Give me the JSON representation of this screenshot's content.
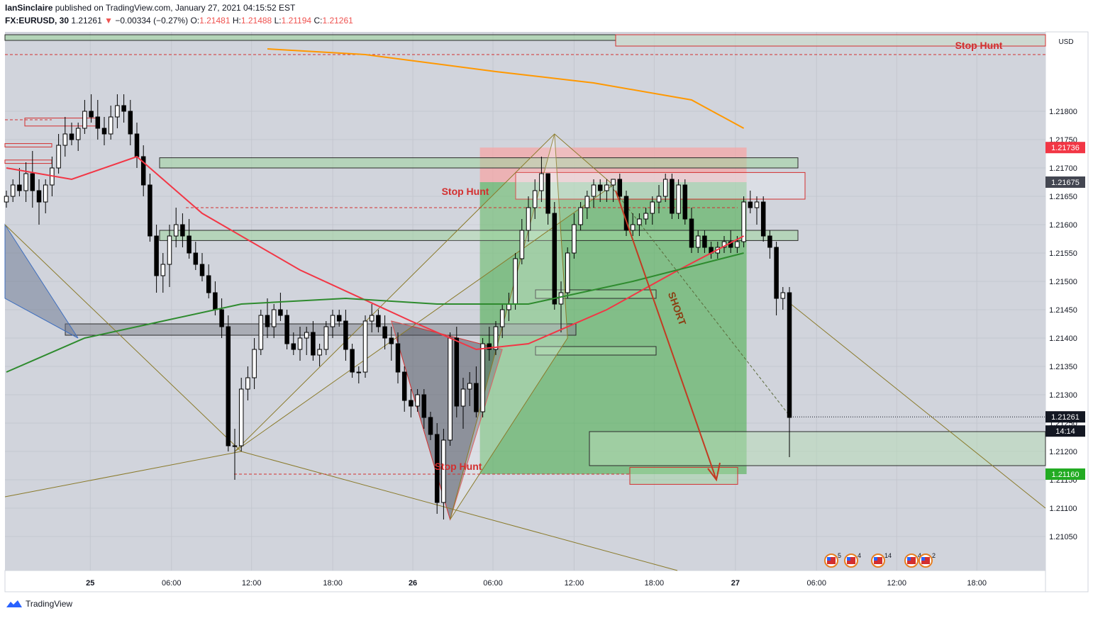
{
  "header": {
    "author": "IanSinclaire",
    "published_text": "published on TradingView.com, January 27, 2021 04:15:52 EST",
    "symbol": "FX:EURUSD, 30",
    "last": "1.21261",
    "arrow": "▼",
    "change": "−0.00334 (−0.27%)",
    "o_label": "O:",
    "o_value": "1.21481",
    "h_label": "H:",
    "h_value": "1.21488",
    "l_label": "L:",
    "l_value": "1.21194",
    "c_label": "C:",
    "c_value": "1.21261"
  },
  "footer": {
    "brand": "TradingView"
  },
  "colors": {
    "up": "#ffffff",
    "down": "#000000",
    "bg": "#d1d4dc",
    "ma_fast": "#f23645",
    "ma_slow": "#2e8b2e",
    "ma_long": "#ff9800",
    "target_zone": "#4caf50",
    "stop_zone": "#f4a7a7",
    "annotation_red": "#d32f2f",
    "price_tag_red": "#f23645",
    "price_tag_green": "#22ab22"
  },
  "chart_data": {
    "type": "candlestick",
    "symbol": "EURUSD",
    "timeframe": "30",
    "currency": "USD",
    "ylim": [
      1.2099,
      1.2194
    ],
    "y_ticks": [
      "1.21050",
      "1.21100",
      "1.21150",
      "1.21200",
      "1.21250",
      "1.21300",
      "1.21350",
      "1.21400",
      "1.21450",
      "1.21500",
      "1.21550",
      "1.21600",
      "1.21650",
      "1.21700",
      "1.21750",
      "1.21800"
    ],
    "x_ticks": [
      "25",
      "06:00",
      "12:00",
      "18:00",
      "26",
      "06:00",
      "12:00",
      "18:00",
      "27",
      "06:00",
      "12:00",
      "18:00"
    ],
    "candles": [
      [
        1.2164,
        1.2166,
        1.2163,
        1.2165
      ],
      [
        1.2165,
        1.2168,
        1.2164,
        1.2167
      ],
      [
        1.2167,
        1.217,
        1.2165,
        1.2166
      ],
      [
        1.2166,
        1.2171,
        1.2164,
        1.2169
      ],
      [
        1.2169,
        1.2173,
        1.2163,
        1.2166
      ],
      [
        1.2166,
        1.2168,
        1.216,
        1.2164
      ],
      [
        1.2164,
        1.2168,
        1.2162,
        1.2167
      ],
      [
        1.2167,
        1.2172,
        1.2165,
        1.217
      ],
      [
        1.217,
        1.2176,
        1.2169,
        1.2174
      ],
      [
        1.2174,
        1.2179,
        1.2172,
        1.2176
      ],
      [
        1.2176,
        1.2178,
        1.2174,
        1.2175
      ],
      [
        1.2175,
        1.2178,
        1.2173,
        1.2177
      ],
      [
        1.2177,
        1.2182,
        1.2176,
        1.218
      ],
      [
        1.218,
        1.2183,
        1.2178,
        1.2179
      ],
      [
        1.2179,
        1.2182,
        1.2175,
        1.2177
      ],
      [
        1.2177,
        1.2179,
        1.2174,
        1.2176
      ],
      [
        1.2176,
        1.2181,
        1.2175,
        1.2179
      ],
      [
        1.2179,
        1.2183,
        1.2177,
        1.2181
      ],
      [
        1.2181,
        1.2183,
        1.2178,
        1.218
      ],
      [
        1.218,
        1.2182,
        1.2174,
        1.2176
      ],
      [
        1.2176,
        1.2178,
        1.217,
        1.2172
      ],
      [
        1.2172,
        1.2174,
        1.2165,
        1.2167
      ],
      [
        1.2167,
        1.2169,
        1.2157,
        1.2158
      ],
      [
        1.2158,
        1.216,
        1.2148,
        1.2151
      ],
      [
        1.2151,
        1.2155,
        1.2148,
        1.2153
      ],
      [
        1.2153,
        1.216,
        1.2149,
        1.2158
      ],
      [
        1.2158,
        1.2163,
        1.2156,
        1.216
      ],
      [
        1.216,
        1.2162,
        1.2156,
        1.2158
      ],
      [
        1.2158,
        1.2161,
        1.2154,
        1.2155
      ],
      [
        1.2155,
        1.2157,
        1.2152,
        1.2153
      ],
      [
        1.2153,
        1.2155,
        1.215,
        1.2151
      ],
      [
        1.2151,
        1.2153,
        1.2147,
        1.2148
      ],
      [
        1.2148,
        1.215,
        1.2144,
        1.2145
      ],
      [
        1.2145,
        1.2147,
        1.214,
        1.2142
      ],
      [
        1.2142,
        1.2144,
        1.212,
        1.2121
      ],
      [
        1.2121,
        1.2124,
        1.2115,
        1.2121
      ],
      [
        1.2121,
        1.2133,
        1.212,
        1.2131
      ],
      [
        1.2131,
        1.2135,
        1.2129,
        1.2133
      ],
      [
        1.2133,
        1.214,
        1.2131,
        1.2138
      ],
      [
        1.2138,
        1.2145,
        1.2137,
        1.2144
      ],
      [
        1.2144,
        1.2147,
        1.214,
        1.2142
      ],
      [
        1.2142,
        1.2146,
        1.214,
        1.2145
      ],
      [
        1.2145,
        1.2148,
        1.2143,
        1.2144
      ],
      [
        1.2144,
        1.2145,
        1.2138,
        1.2139
      ],
      [
        1.2139,
        1.2141,
        1.2137,
        1.2138
      ],
      [
        1.2138,
        1.2142,
        1.2136,
        1.214
      ],
      [
        1.214,
        1.2142,
        1.2137,
        1.2141
      ],
      [
        1.2141,
        1.2143,
        1.2136,
        1.2137
      ],
      [
        1.2137,
        1.2139,
        1.2135,
        1.2138
      ],
      [
        1.2138,
        1.2143,
        1.2137,
        1.2142
      ],
      [
        1.2142,
        1.2145,
        1.214,
        1.2144
      ],
      [
        1.2144,
        1.2145,
        1.2142,
        1.2143
      ],
      [
        1.2143,
        1.2145,
        1.2136,
        1.2138
      ],
      [
        1.2138,
        1.2139,
        1.2133,
        1.2134
      ],
      [
        1.2134,
        1.2135,
        1.2132,
        1.2134
      ],
      [
        1.2134,
        1.2144,
        1.2133,
        1.2143
      ],
      [
        1.2143,
        1.2146,
        1.2141,
        1.2144
      ],
      [
        1.2144,
        1.2145,
        1.2141,
        1.2142
      ],
      [
        1.2142,
        1.2144,
        1.2138,
        1.214
      ],
      [
        1.214,
        1.2142,
        1.2136,
        1.2139
      ],
      [
        1.2139,
        1.2141,
        1.2132,
        1.2134
      ],
      [
        1.2134,
        1.2135,
        1.2127,
        1.2129
      ],
      [
        1.2129,
        1.2131,
        1.2126,
        1.2128
      ],
      [
        1.2128,
        1.2131,
        1.2127,
        1.213
      ],
      [
        1.213,
        1.2131,
        1.2124,
        1.2126
      ],
      [
        1.2126,
        1.2127,
        1.2122,
        1.2123
      ],
      [
        1.2123,
        1.2125,
        1.2109,
        1.2111
      ],
      [
        1.2111,
        1.2124,
        1.2108,
        1.2122
      ],
      [
        1.2122,
        1.2141,
        1.2121,
        1.214
      ],
      [
        1.214,
        1.2142,
        1.2126,
        1.2128
      ],
      [
        1.2128,
        1.2133,
        1.2124,
        1.2131
      ],
      [
        1.2131,
        1.2134,
        1.2128,
        1.2132
      ],
      [
        1.2132,
        1.2135,
        1.2126,
        1.2127
      ],
      [
        1.2127,
        1.214,
        1.2126,
        1.2139
      ],
      [
        1.2139,
        1.2142,
        1.2136,
        1.2138
      ],
      [
        1.2138,
        1.2143,
        1.2137,
        1.2142
      ],
      [
        1.2142,
        1.2146,
        1.214,
        1.2145
      ],
      [
        1.2145,
        1.2148,
        1.2143,
        1.2146
      ],
      [
        1.2146,
        1.2155,
        1.2145,
        1.2154
      ],
      [
        1.2154,
        1.2161,
        1.2153,
        1.2159
      ],
      [
        1.2159,
        1.2165,
        1.2157,
        1.2163
      ],
      [
        1.2163,
        1.2168,
        1.2161,
        1.2166
      ],
      [
        1.2166,
        1.2172,
        1.2164,
        1.2169
      ],
      [
        1.2169,
        1.2169,
        1.216,
        1.2162
      ],
      [
        1.2162,
        1.2164,
        1.2145,
        1.2146
      ],
      [
        1.2146,
        1.215,
        1.2141,
        1.2148
      ],
      [
        1.2148,
        1.2156,
        1.2147,
        1.2155
      ],
      [
        1.2155,
        1.2162,
        1.2154,
        1.216
      ],
      [
        1.216,
        1.2164,
        1.2159,
        1.2163
      ],
      [
        1.2163,
        1.2166,
        1.2161,
        1.2165
      ],
      [
        1.2165,
        1.2168,
        1.2163,
        1.2167
      ],
      [
        1.2167,
        1.2168,
        1.2164,
        1.2166
      ],
      [
        1.2166,
        1.2168,
        1.2164,
        1.2167
      ],
      [
        1.2167,
        1.2168,
        1.2164,
        1.2168
      ],
      [
        1.2168,
        1.2169,
        1.2164,
        1.2165
      ],
      [
        1.2165,
        1.2166,
        1.2158,
        1.2159
      ],
      [
        1.2159,
        1.2162,
        1.2158,
        1.216
      ],
      [
        1.216,
        1.2162,
        1.2158,
        1.2161
      ],
      [
        1.2161,
        1.2163,
        1.216,
        1.2162
      ],
      [
        1.2162,
        1.2165,
        1.216,
        1.2164
      ],
      [
        1.2164,
        1.2167,
        1.2162,
        1.2165
      ],
      [
        1.2165,
        1.2169,
        1.2164,
        1.2168
      ],
      [
        1.2168,
        1.2169,
        1.2161,
        1.2162
      ],
      [
        1.2162,
        1.2168,
        1.2161,
        1.2167
      ],
      [
        1.2167,
        1.2168,
        1.216,
        1.2161
      ],
      [
        1.2161,
        1.2163,
        1.2155,
        1.2156
      ],
      [
        1.2156,
        1.2159,
        1.2155,
        1.2158
      ],
      [
        1.2158,
        1.2159,
        1.2155,
        1.2156
      ],
      [
        1.2156,
        1.2157,
        1.2154,
        1.2155
      ],
      [
        1.2155,
        1.2157,
        1.2154,
        1.2156
      ],
      [
        1.2156,
        1.2158,
        1.2155,
        1.2157
      ],
      [
        1.2157,
        1.2159,
        1.2155,
        1.2156
      ],
      [
        1.2156,
        1.2158,
        1.2155,
        1.2157
      ],
      [
        1.2157,
        1.2165,
        1.2156,
        1.2164
      ],
      [
        1.2164,
        1.2166,
        1.2162,
        1.2163
      ],
      [
        1.2163,
        1.2165,
        1.216,
        1.2164
      ],
      [
        1.2164,
        1.2165,
        1.2157,
        1.2158
      ],
      [
        1.2158,
        1.2159,
        1.2154,
        1.2156
      ],
      [
        1.2156,
        1.2157,
        1.2144,
        1.2147
      ],
      [
        1.2147,
        1.2149,
        1.2145,
        1.2148
      ],
      [
        1.2148,
        1.2149,
        1.2119,
        1.2126
      ]
    ],
    "series": [
      {
        "style": "line",
        "color": "#f23645",
        "values": [
          [
            0,
            1.217
          ],
          [
            10,
            1.2168
          ],
          [
            20,
            1.2172
          ],
          [
            30,
            1.2162
          ],
          [
            45,
            1.2152
          ],
          [
            62,
            1.2143
          ],
          [
            72,
            1.2138
          ],
          [
            80,
            1.2139
          ],
          [
            92,
            1.2145
          ],
          [
            103,
            1.2152
          ],
          [
            113,
            1.2158
          ]
        ]
      },
      {
        "style": "line",
        "color": "#2e8b2e",
        "values": [
          [
            0,
            1.2134
          ],
          [
            12,
            1.214
          ],
          [
            24,
            1.2143
          ],
          [
            36,
            1.2146
          ],
          [
            52,
            1.2147
          ],
          [
            66,
            1.2146
          ],
          [
            80,
            1.2146
          ],
          [
            96,
            1.215
          ],
          [
            113,
            1.2155
          ]
        ]
      },
      {
        "style": "line",
        "color": "#ff9800",
        "values": [
          [
            40,
            1.2191
          ],
          [
            55,
            1.219
          ],
          [
            75,
            1.2187
          ],
          [
            90,
            1.2185
          ],
          [
            105,
            1.2182
          ],
          [
            113,
            1.2177
          ]
        ]
      }
    ],
    "zones": [
      {
        "kind": "stop",
        "x": [
          73,
          113
        ],
        "y": [
          1.21675,
          1.21736
        ]
      },
      {
        "kind": "target",
        "x": [
          73,
          113
        ],
        "y": [
          1.2116,
          1.21675
        ]
      }
    ],
    "annotations": [
      {
        "text": "Stop Hunt",
        "color": "#d32f2f",
        "price": 1.2165
      },
      {
        "text": "Stop Hunt",
        "color": "#d32f2f",
        "price": 1.2116
      },
      {
        "text": "Stop Hunt",
        "color": "#d32f2f",
        "price": 1.2191
      },
      {
        "text": "SHORT",
        "color": "#8b3e12",
        "price": 1.2145
      }
    ],
    "price_labels": [
      {
        "value": "1.21736",
        "bg": "#f23645",
        "fg": "#ffffff"
      },
      {
        "value": "1.21675",
        "bg": "#434651",
        "fg": "#ffffff"
      },
      {
        "value": "1.21261",
        "bg": "#131722",
        "fg": "#ffffff"
      },
      {
        "value": "14:14",
        "bg": "#131722",
        "fg": "#ffffff"
      },
      {
        "value": "1.21160",
        "bg": "#22ab22",
        "fg": "#ffffff"
      }
    ],
    "events": [
      "5",
      "4",
      "14",
      "4",
      "2"
    ]
  }
}
